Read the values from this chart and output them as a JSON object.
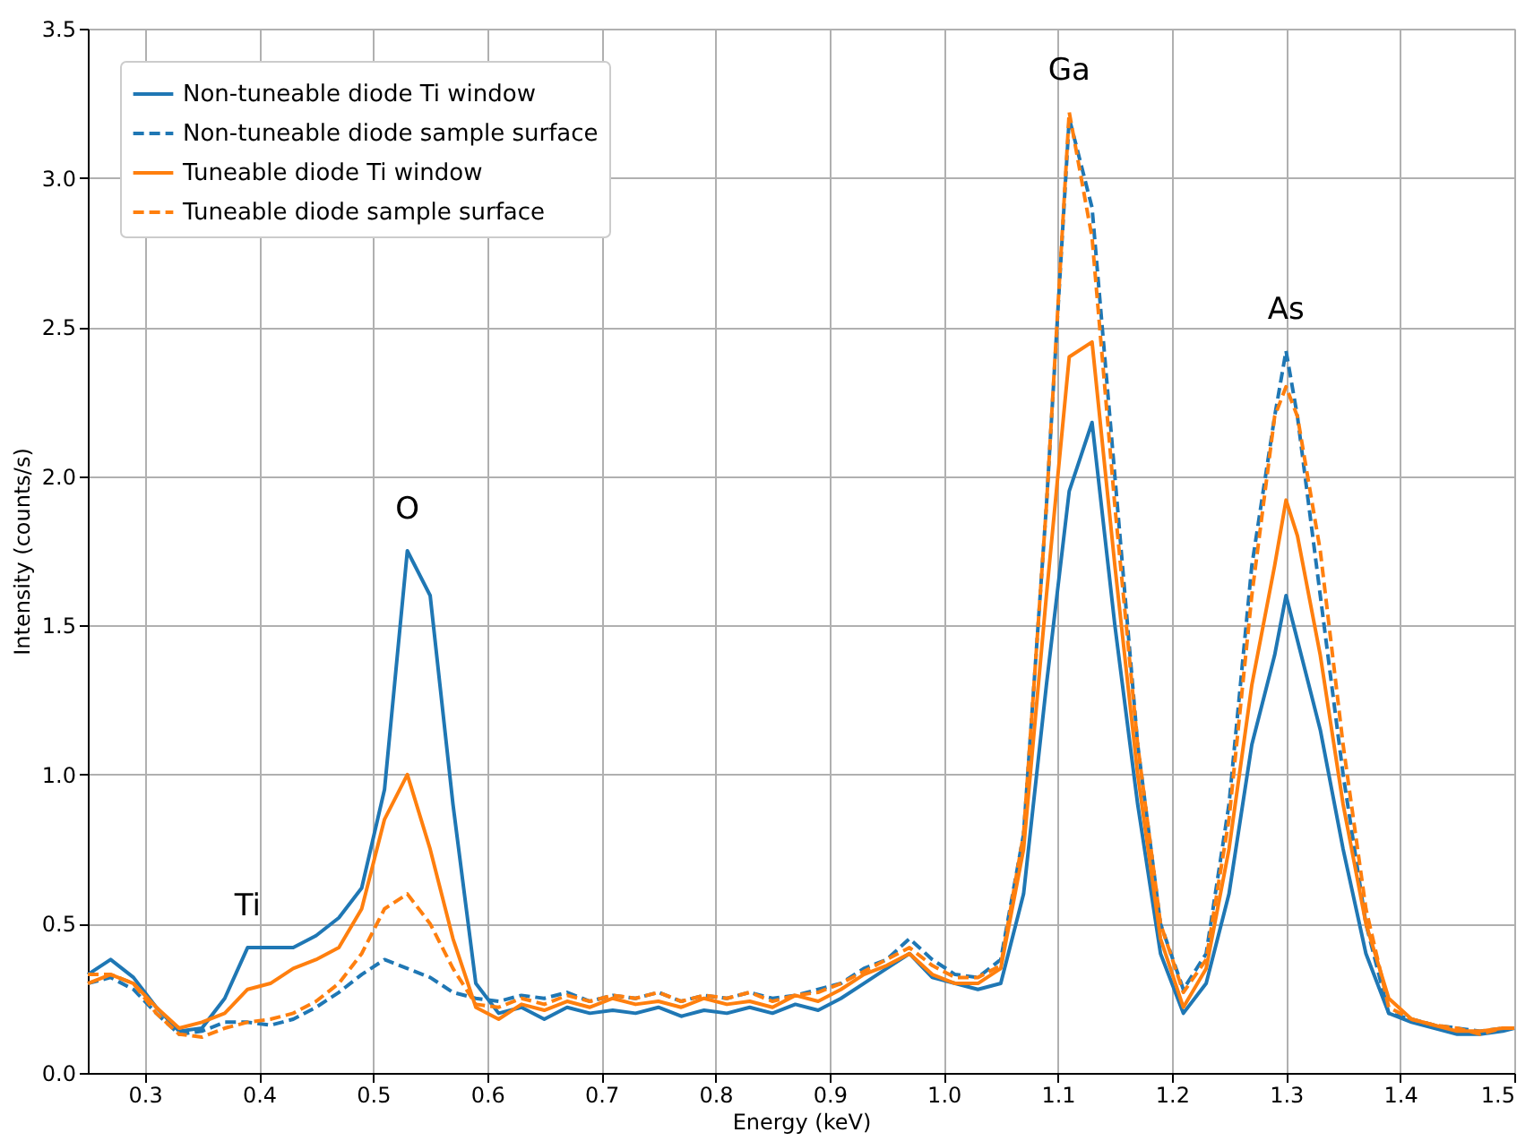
{
  "chart_data": {
    "type": "line",
    "xlabel": "Energy (keV)",
    "ylabel": "Intensity (counts/s)",
    "x": [
      0.25,
      0.27,
      0.29,
      0.31,
      0.33,
      0.35,
      0.37,
      0.39,
      0.41,
      0.43,
      0.45,
      0.47,
      0.49,
      0.51,
      0.53,
      0.55,
      0.57,
      0.59,
      0.61,
      0.63,
      0.65,
      0.67,
      0.69,
      0.71,
      0.73,
      0.75,
      0.77,
      0.79,
      0.81,
      0.83,
      0.85,
      0.87,
      0.89,
      0.91,
      0.93,
      0.95,
      0.97,
      0.99,
      1.01,
      1.03,
      1.05,
      1.07,
      1.09,
      1.11,
      1.13,
      1.15,
      1.17,
      1.19,
      1.21,
      1.23,
      1.25,
      1.27,
      1.29,
      1.3,
      1.31,
      1.33,
      1.35,
      1.37,
      1.39,
      1.41,
      1.43,
      1.45,
      1.47,
      1.49,
      1.5
    ],
    "series": [
      {
        "name": "Non-tuneable diode Ti window",
        "color": "#1f77b4",
        "line_style": "solid",
        "values": [
          0.33,
          0.38,
          0.32,
          0.22,
          0.14,
          0.15,
          0.25,
          0.42,
          0.42,
          0.42,
          0.46,
          0.52,
          0.62,
          0.95,
          1.75,
          1.6,
          0.9,
          0.3,
          0.2,
          0.22,
          0.18,
          0.22,
          0.2,
          0.21,
          0.2,
          0.22,
          0.19,
          0.21,
          0.2,
          0.22,
          0.2,
          0.23,
          0.21,
          0.25,
          0.3,
          0.35,
          0.4,
          0.32,
          0.3,
          0.28,
          0.3,
          0.6,
          1.3,
          1.95,
          2.18,
          1.5,
          0.9,
          0.4,
          0.2,
          0.3,
          0.6,
          1.1,
          1.4,
          1.6,
          1.45,
          1.15,
          0.75,
          0.4,
          0.2,
          0.17,
          0.15,
          0.13,
          0.13,
          0.14,
          0.15
        ]
      },
      {
        "name": "Non-tuneable diode sample surface",
        "color": "#1f77b4",
        "line_style": "dashed",
        "values": [
          0.3,
          0.32,
          0.28,
          0.2,
          0.13,
          0.14,
          0.17,
          0.17,
          0.16,
          0.18,
          0.22,
          0.27,
          0.33,
          0.38,
          0.35,
          0.32,
          0.27,
          0.25,
          0.24,
          0.26,
          0.25,
          0.27,
          0.24,
          0.26,
          0.25,
          0.27,
          0.24,
          0.26,
          0.25,
          0.27,
          0.25,
          0.26,
          0.28,
          0.3,
          0.35,
          0.38,
          0.45,
          0.38,
          0.33,
          0.32,
          0.38,
          0.8,
          1.9,
          3.2,
          2.9,
          2.0,
          1.1,
          0.5,
          0.28,
          0.4,
          0.9,
          1.7,
          2.2,
          2.42,
          2.2,
          1.6,
          1.0,
          0.5,
          0.2,
          0.18,
          0.16,
          0.15,
          0.14,
          0.15,
          0.15
        ]
      },
      {
        "name": "Tuneable diode Ti window",
        "color": "#ff7f0e",
        "line_style": "solid",
        "values": [
          0.3,
          0.33,
          0.3,
          0.22,
          0.15,
          0.17,
          0.2,
          0.28,
          0.3,
          0.35,
          0.38,
          0.42,
          0.55,
          0.85,
          1.0,
          0.75,
          0.45,
          0.22,
          0.18,
          0.23,
          0.21,
          0.24,
          0.22,
          0.25,
          0.23,
          0.24,
          0.22,
          0.25,
          0.23,
          0.24,
          0.22,
          0.26,
          0.24,
          0.28,
          0.33,
          0.36,
          0.4,
          0.33,
          0.3,
          0.3,
          0.35,
          0.75,
          1.6,
          2.4,
          2.45,
          1.7,
          1.0,
          0.45,
          0.22,
          0.35,
          0.75,
          1.3,
          1.7,
          1.92,
          1.8,
          1.4,
          0.9,
          0.5,
          0.25,
          0.18,
          0.16,
          0.14,
          0.14,
          0.15,
          0.15
        ]
      },
      {
        "name": "Tuneable diode sample surface",
        "color": "#ff7f0e",
        "line_style": "dashed",
        "values": [
          0.33,
          0.33,
          0.3,
          0.2,
          0.13,
          0.12,
          0.15,
          0.17,
          0.18,
          0.2,
          0.24,
          0.3,
          0.4,
          0.55,
          0.6,
          0.5,
          0.35,
          0.23,
          0.22,
          0.25,
          0.23,
          0.26,
          0.24,
          0.26,
          0.25,
          0.27,
          0.24,
          0.26,
          0.25,
          0.27,
          0.24,
          0.26,
          0.27,
          0.3,
          0.34,
          0.38,
          0.42,
          0.36,
          0.32,
          0.32,
          0.36,
          0.8,
          1.9,
          3.22,
          2.8,
          1.9,
          1.1,
          0.5,
          0.27,
          0.38,
          0.85,
          1.6,
          2.2,
          2.3,
          2.2,
          1.75,
          1.1,
          0.55,
          0.22,
          0.18,
          0.16,
          0.15,
          0.13,
          0.15,
          0.15
        ]
      }
    ],
    "annotations": [
      {
        "text": "Ti",
        "x": 0.39,
        "y": 0.42
      },
      {
        "text": "O",
        "x": 0.53,
        "y": 1.75
      },
      {
        "text": "Ga",
        "x": 1.11,
        "y": 3.22
      },
      {
        "text": "As",
        "x": 1.3,
        "y": 2.42
      }
    ],
    "xlim": [
      0.25,
      1.5
    ],
    "xticks": [
      0.3,
      0.4,
      0.5,
      0.6,
      0.7,
      0.8,
      0.9,
      {
        "value": 1.0,
        "label": "1.0"
      },
      1.1,
      1.2,
      1.3,
      1.4,
      1.5
    ],
    "ylim": [
      0.0,
      3.5
    ],
    "yticks": [
      {
        "value": 0.0,
        "label": "0.0"
      },
      0.5,
      {
        "value": 1.0,
        "label": "1.0"
      },
      1.5,
      {
        "value": 2.0,
        "label": "2.0"
      },
      2.5,
      {
        "value": 3.0,
        "label": "3.0"
      },
      3.5
    ],
    "grid": true,
    "legend": "top left",
    "marker": "none"
  }
}
